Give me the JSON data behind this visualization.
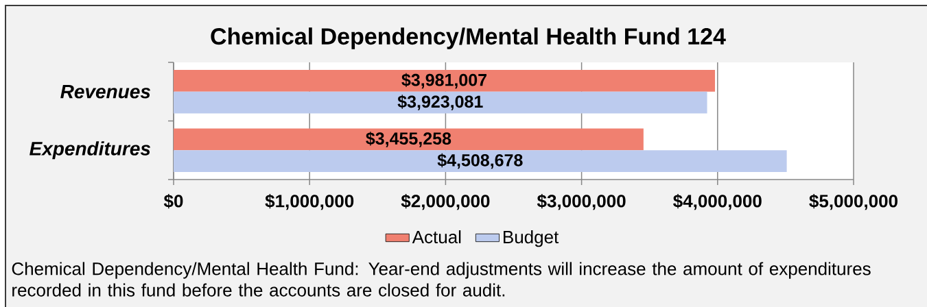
{
  "chart_data": {
    "type": "bar",
    "orientation": "horizontal",
    "title": "Chemical Dependency/Mental Health Fund 124",
    "categories": [
      "Revenues",
      "Expenditures"
    ],
    "series": [
      {
        "name": "Actual",
        "color": "#f08070",
        "values": [
          3981007,
          3455258
        ],
        "value_labels": [
          "$3,981,007",
          "$3,455,258"
        ]
      },
      {
        "name": "Budget",
        "color": "#bccbee",
        "values": [
          3923081,
          4508678
        ],
        "value_labels": [
          "$3,923,081",
          "$4,508,678"
        ]
      }
    ],
    "xlim": [
      0,
      5000000
    ],
    "xticks": [
      {
        "value": 0,
        "label": "$0"
      },
      {
        "value": 1000000,
        "label": "$1,000,000"
      },
      {
        "value": 2000000,
        "label": "$2,000,000"
      },
      {
        "value": 3000000,
        "label": "$3,000,000"
      },
      {
        "value": 4000000,
        "label": "$4,000,000"
      },
      {
        "value": 5000000,
        "label": "$5,000,000"
      }
    ],
    "grid": "x",
    "legend": "bottom",
    "annotations": [
      "Chemical Dependency/Mental Health Fund: Year-end adjustments will increase the amount of expenditures recorded in this fund before the accounts are closed for audit."
    ]
  }
}
